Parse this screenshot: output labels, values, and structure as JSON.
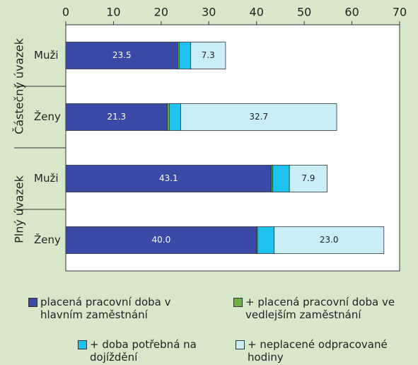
{
  "chart_data": {
    "type": "bar",
    "orientation": "horizontal",
    "stacked": true,
    "groups": [
      "Částečný úvazek",
      "Plný úvazek"
    ],
    "categories": [
      "Muži",
      "Ženy",
      "Muži",
      "Ženy"
    ],
    "xlim": [
      0,
      70
    ],
    "xticks": [
      0,
      10,
      20,
      30,
      40,
      50,
      60,
      70
    ],
    "grid": false,
    "series": [
      {
        "name": "placená pracovní doba v hlavním zaměstnání",
        "color": "#3b4aa6",
        "values": [
          23.5,
          21.3,
          43.1,
          40.0
        ],
        "value_labels": [
          "23.5",
          "21.3",
          "43.1",
          "40.0"
        ]
      },
      {
        "name": "+ placená pracovní doba ve vedlejším zaměstnání",
        "color": "#6cb33f",
        "values": [
          0.3,
          0.4,
          0.3,
          0.2
        ]
      },
      {
        "name": "+ doba potřebná na dojíždění",
        "color": "#1ec3ee",
        "values": [
          2.4,
          2.4,
          3.5,
          3.5
        ]
      },
      {
        "name": "+ neplacené odpracované hodiny",
        "color": "#c9eef8",
        "values": [
          7.3,
          32.7,
          7.9,
          23.0
        ],
        "value_labels": [
          "7.3",
          "32.7",
          "7.9",
          "23.0"
        ]
      }
    ]
  }
}
